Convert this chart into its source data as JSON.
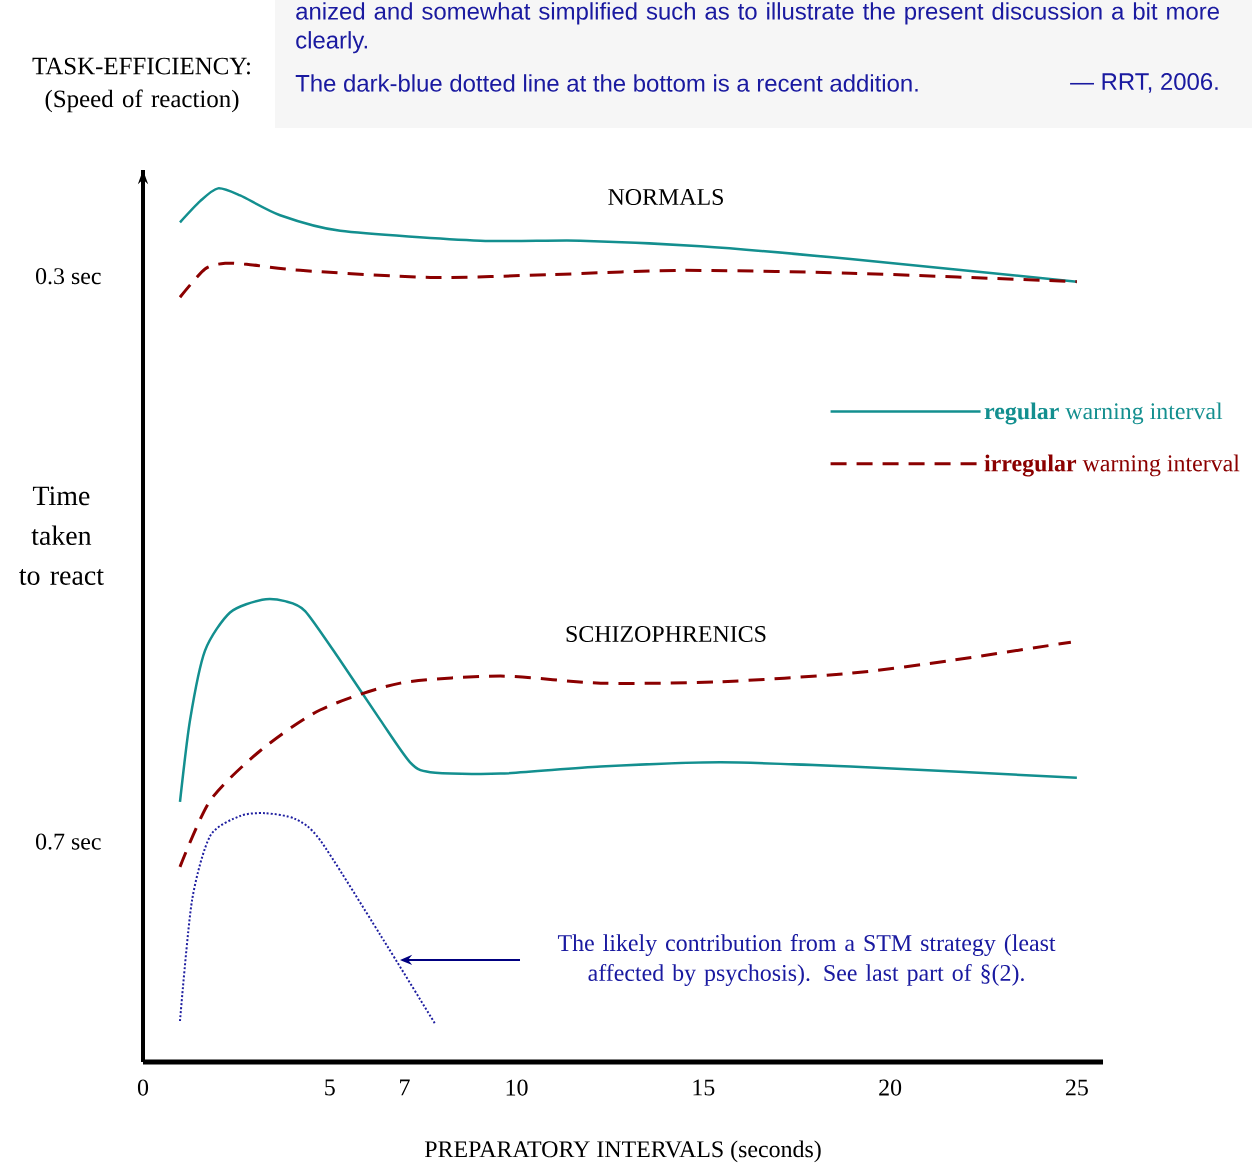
{
  "chart_data": {
    "type": "line",
    "xlabel": "PREPARATORY INTERVALS (seconds)",
    "ylabel": "Time taken to react",
    "xlim": [
      0,
      25.7
    ],
    "ylim": [
      0.856,
      0.225
    ],
    "xticks": [
      0,
      5,
      7,
      10,
      15,
      20,
      25
    ],
    "yticks": [
      {
        "value": 0.3,
        "label": "0.3 sec"
      },
      {
        "value": 0.7,
        "label": "0.7 sec"
      }
    ],
    "legend": "right",
    "series": [
      {
        "name": "**regular** warning interval",
        "color": "#138f8f",
        "line_style": "solid",
        "x": [
          0.99,
          1.53,
          2.01,
          2.6,
          3.67,
          5.28,
          9.03,
          11.71,
          14.93,
          18.94,
          25.0
        ],
        "values": [
          0.262,
          0.247,
          0.238,
          0.243,
          0.257,
          0.268,
          0.275,
          0.275,
          0.279,
          0.288,
          0.304
        ]
      },
      {
        "name": "**irregular** warning interval",
        "color": "#8b0000",
        "line_style": "dashed",
        "x": [
          0.99,
          1.66,
          2.2,
          2.87,
          4.21,
          7.69,
          10.91,
          14.39,
          18.94,
          25.0
        ],
        "values": [
          0.315,
          0.295,
          0.291,
          0.292,
          0.296,
          0.301,
          0.299,
          0.296,
          0.298,
          0.304
        ]
      },
      {
        "color": "#138f8f",
        "line_style": "solid",
        "x": [
          0.99,
          1.26,
          1.66,
          2.33,
          3.19,
          3.8,
          4.34,
          5.28,
          6.35,
          7.15,
          7.69,
          9.57,
          12.25,
          15.46,
          18.94,
          25.0
        ],
        "values": [
          0.672,
          0.614,
          0.565,
          0.538,
          0.529,
          0.53,
          0.537,
          0.572,
          0.614,
          0.644,
          0.651,
          0.652,
          0.647,
          0.644,
          0.647,
          0.655
        ]
      },
      {
        "color": "#8b0000",
        "line_style": "dashed",
        "x": [
          0.99,
          1.8,
          3.13,
          4.74,
          6.89,
          9.57,
          12.25,
          15.46,
          18.94,
          21.62,
          24.84
        ],
        "values": [
          0.718,
          0.671,
          0.636,
          0.607,
          0.588,
          0.583,
          0.588,
          0.587,
          0.581,
          0.572,
          0.559
        ]
      },
      {
        "color": "#1f1fa0",
        "line_style": "dotted",
        "x": [
          0.99,
          1.31,
          1.8,
          2.6,
          3.27,
          4.07,
          4.74,
          6.35,
          7.82
        ],
        "values": [
          0.827,
          0.742,
          0.696,
          0.682,
          0.68,
          0.684,
          0.699,
          0.766,
          0.829
        ]
      }
    ],
    "annotations": [
      "NORMALS",
      "SCHIZOPHRENICS",
      "The likely contribution from a STM strategy (least affected by psychosis).  See last part of §(2).",
      "TASK-EFFICIENCY: (Speed of reaction)",
      "anized and somewhat simplified such as to illustrate the present discussion a bit more clearly.",
      "The dark-blue dotted line at the bottom is a recent  addition.",
      "— RRT, 2006."
    ]
  }
}
